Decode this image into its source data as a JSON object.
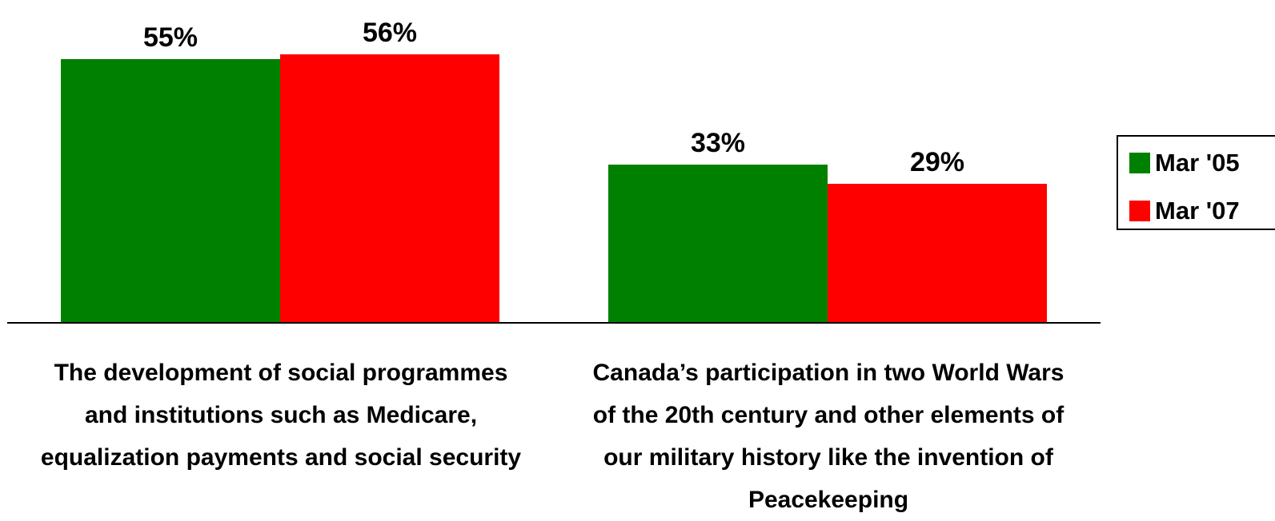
{
  "chart_data": {
    "type": "bar",
    "categories": [
      [
        "The development of social programmes",
        "and institutions such as Medicare,",
        "equalization payments and social security"
      ],
      [
        "Canada’s participation in two World Wars",
        "of the 20th century and other elements of",
        "our military history like the invention of",
        "Peacekeeping"
      ]
    ],
    "series": [
      {
        "name": "Mar '05",
        "color": "#008000",
        "values": [
          55,
          33
        ],
        "labels": [
          "55%",
          "33%"
        ]
      },
      {
        "name": "Mar '07",
        "color": "#ff0000",
        "values": [
          56,
          29
        ],
        "labels": [
          "56%",
          "29%"
        ]
      }
    ],
    "ylim": [
      0,
      56
    ],
    "grid": false,
    "legend_position": "right"
  }
}
